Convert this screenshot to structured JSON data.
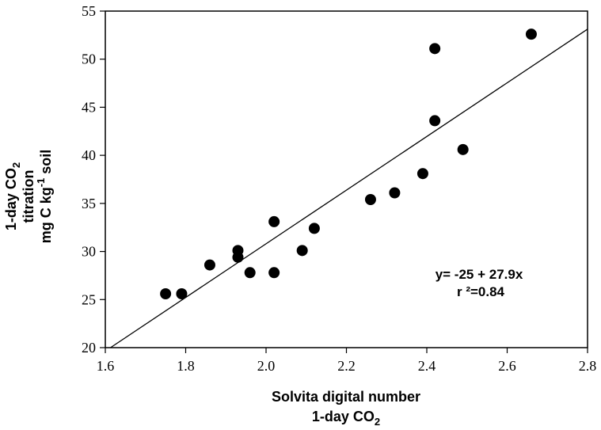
{
  "chart_data": {
    "type": "scatter",
    "title": "",
    "xlabel": {
      "line1": "Solvita digital number",
      "line2_main": "1-day CO",
      "line2_sub": "2"
    },
    "ylabel": {
      "line1_main": "1-day CO",
      "line1_sub": "2",
      "line2": "titration",
      "line3_main": "mg C kg",
      "line3_sup": "-1",
      "line3_end": " soil"
    },
    "xlim": [
      1.6,
      2.8
    ],
    "ylim": [
      20,
      55
    ],
    "xticks": [
      "1.6",
      "1.8",
      "2.0",
      "2.2",
      "2.4",
      "2.6",
      "2.8"
    ],
    "yticks": [
      "20",
      "25",
      "30",
      "35",
      "40",
      "45",
      "50",
      "55"
    ],
    "grid": false,
    "points": [
      {
        "x": 1.75,
        "y": 25.6
      },
      {
        "x": 1.79,
        "y": 25.6
      },
      {
        "x": 1.86,
        "y": 28.6
      },
      {
        "x": 1.93,
        "y": 30.1
      },
      {
        "x": 1.93,
        "y": 29.4
      },
      {
        "x": 1.96,
        "y": 27.8
      },
      {
        "x": 2.02,
        "y": 33.1
      },
      {
        "x": 2.02,
        "y": 27.8
      },
      {
        "x": 2.09,
        "y": 30.1
      },
      {
        "x": 2.12,
        "y": 32.4
      },
      {
        "x": 2.26,
        "y": 35.4
      },
      {
        "x": 2.32,
        "y": 36.1
      },
      {
        "x": 2.39,
        "y": 38.1
      },
      {
        "x": 2.42,
        "y": 51.1
      },
      {
        "x": 2.42,
        "y": 43.6
      },
      {
        "x": 2.49,
        "y": 40.6
      },
      {
        "x": 2.66,
        "y": 52.6
      }
    ],
    "fit_line": {
      "intercept": -25,
      "slope": 27.9
    },
    "annotation": {
      "equation": "y= -25 + 27.9x",
      "r2": "r ²=0.84"
    }
  }
}
